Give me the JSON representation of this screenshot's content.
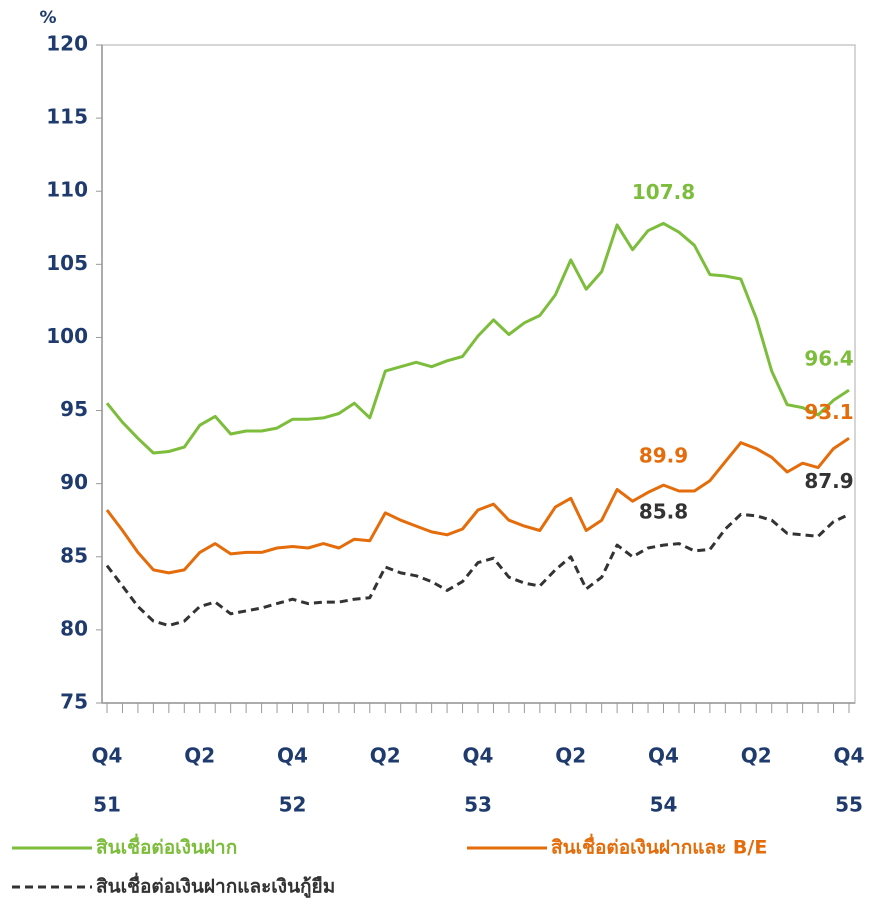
{
  "chart_data": {
    "type": "line",
    "y_label": "%",
    "ylim": [
      75,
      120
    ],
    "yticks": [
      75,
      80,
      85,
      90,
      95,
      100,
      105,
      110,
      115,
      120
    ],
    "grid": false,
    "categories": [
      "Q4",
      null,
      null,
      null,
      null,
      null,
      "Q2",
      null,
      null,
      null,
      null,
      null,
      "Q4",
      null,
      null,
      null,
      null,
      null,
      "Q2",
      null,
      null,
      null,
      null,
      null,
      "Q4",
      null,
      null,
      null,
      null,
      null,
      "Q2",
      null,
      null,
      null,
      null,
      null,
      "Q4",
      null,
      null,
      null,
      null,
      null,
      "Q2",
      null,
      null,
      null,
      null,
      null,
      "Q4"
    ],
    "years": [
      "51",
      null,
      null,
      null,
      null,
      null,
      null,
      null,
      null,
      null,
      null,
      null,
      "52",
      null,
      null,
      null,
      null,
      null,
      null,
      null,
      null,
      null,
      null,
      null,
      "53",
      null,
      null,
      null,
      null,
      null,
      null,
      null,
      null,
      null,
      null,
      null,
      "54",
      null,
      null,
      null,
      null,
      null,
      null,
      null,
      null,
      null,
      null,
      null,
      "55"
    ],
    "series": [
      {
        "name": "สินเชื่อต่อเงินฝาก",
        "color": "#7dbd3c",
        "dashed": false,
        "values": [
          95.5,
          94.2,
          93.1,
          92.1,
          92.2,
          92.5,
          94.0,
          94.6,
          93.4,
          93.6,
          93.6,
          93.8,
          94.4,
          94.4,
          94.5,
          94.8,
          95.5,
          94.5,
          97.7,
          98.0,
          98.3,
          98.0,
          98.4,
          98.7,
          100.1,
          101.2,
          100.2,
          101.0,
          101.5,
          102.9,
          105.3,
          103.3,
          104.5,
          107.7,
          106.0,
          107.3,
          107.8,
          107.2,
          106.3,
          104.3,
          104.2,
          104.0,
          101.3,
          97.7,
          95.4,
          95.2,
          94.7,
          95.7,
          96.4
        ],
        "value_labels": [
          null,
          null,
          null,
          null,
          null,
          null,
          null,
          null,
          null,
          null,
          null,
          null,
          null,
          null,
          null,
          null,
          null,
          null,
          null,
          null,
          null,
          null,
          null,
          null,
          null,
          null,
          null,
          null,
          null,
          null,
          null,
          null,
          null,
          null,
          null,
          null,
          "107.8",
          null,
          null,
          null,
          null,
          null,
          null,
          null,
          null,
          null,
          null,
          null,
          "96.4"
        ]
      },
      {
        "name": "สินเชื่อต่อเงินฝากและ B/E",
        "color": "#e46c0a",
        "dashed": false,
        "values": [
          88.2,
          86.8,
          85.3,
          84.1,
          83.9,
          84.1,
          85.3,
          85.9,
          85.2,
          85.3,
          85.3,
          85.6,
          85.7,
          85.6,
          85.9,
          85.6,
          86.2,
          86.1,
          88.0,
          87.5,
          87.1,
          86.7,
          86.5,
          86.9,
          88.2,
          88.6,
          87.5,
          87.1,
          86.8,
          88.4,
          89.0,
          86.8,
          87.5,
          89.6,
          88.8,
          89.4,
          89.9,
          89.5,
          89.5,
          90.2,
          91.5,
          92.8,
          92.4,
          91.8,
          90.8,
          91.4,
          91.1,
          92.4,
          93.1
        ],
        "value_labels": [
          null,
          null,
          null,
          null,
          null,
          null,
          null,
          null,
          null,
          null,
          null,
          null,
          null,
          null,
          null,
          null,
          null,
          null,
          null,
          null,
          null,
          null,
          null,
          null,
          null,
          null,
          null,
          null,
          null,
          null,
          null,
          null,
          null,
          null,
          null,
          null,
          "89.9",
          null,
          null,
          null,
          null,
          null,
          null,
          null,
          null,
          null,
          null,
          null,
          "93.1"
        ]
      },
      {
        "name": "สินเชื่อต่อเงินฝากและเงินกู้ยืม",
        "color": "#333333",
        "dashed": true,
        "values": [
          84.4,
          83.0,
          81.6,
          80.6,
          80.3,
          80.6,
          81.6,
          81.9,
          81.1,
          81.3,
          81.5,
          81.8,
          82.1,
          81.8,
          81.9,
          81.9,
          82.1,
          82.2,
          84.3,
          83.9,
          83.7,
          83.3,
          82.7,
          83.3,
          84.6,
          84.9,
          83.6,
          83.2,
          83.0,
          84.1,
          85.0,
          82.8,
          83.6,
          85.8,
          85.0,
          85.6,
          85.8,
          85.9,
          85.4,
          85.5,
          86.9,
          87.9,
          87.8,
          87.5,
          86.6,
          86.5,
          86.4,
          87.4,
          87.9
        ],
        "value_labels": [
          null,
          null,
          null,
          null,
          null,
          null,
          null,
          null,
          null,
          null,
          null,
          null,
          null,
          null,
          null,
          null,
          null,
          null,
          null,
          null,
          null,
          null,
          null,
          null,
          null,
          null,
          null,
          null,
          null,
          null,
          null,
          null,
          null,
          null,
          null,
          null,
          "85.8",
          null,
          null,
          null,
          null,
          null,
          null,
          null,
          null,
          null,
          null,
          null,
          "87.9"
        ]
      }
    ]
  }
}
